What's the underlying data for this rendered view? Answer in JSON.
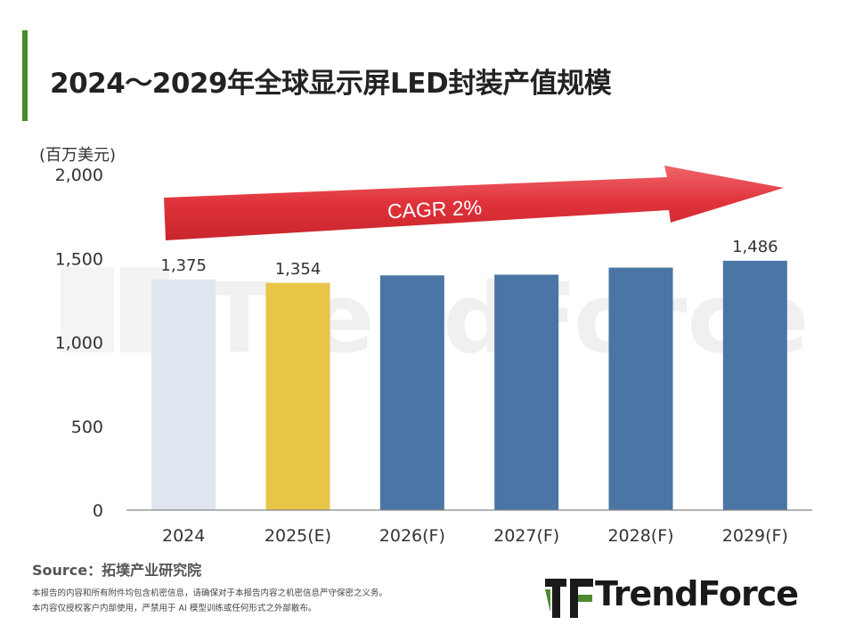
{
  "page": {
    "title": "2024～2029年全球显示屏LED封装产值规模",
    "unit": "(百万美元)",
    "source": "Source：拓墣产业研究院",
    "disclaimer_1": "本报告的内容和所有附件均包含机密信息，请确保对于本报告内容之机密信息严守保密之义务。",
    "disclaimer_2": "本内容仅授权客户内部使用，严禁用于 AI 模型训练或任何形式之外部散布。",
    "logo_text": "TrendForce",
    "watermark": "TrendForce",
    "cagr": "CAGR 2%"
  },
  "chart_data": {
    "type": "bar",
    "categories": [
      "2024",
      "2025(E)",
      "2026(F)",
      "2027(F)",
      "2028(F)",
      "2029(F)"
    ],
    "values": [
      1375,
      1354,
      1399,
      1403,
      1445,
      1486
    ],
    "data_labels": [
      "1,375",
      "1,354",
      "",
      "",
      "",
      "1,486"
    ],
    "bar_colors": [
      "#dfe6ef",
      "#e8c547",
      "#4a75a5",
      "#4a75a5",
      "#4a75a5",
      "#4a75a5"
    ],
    "ylim": [
      0,
      2000
    ],
    "yticks": [
      0,
      500,
      1000,
      1500,
      2000
    ],
    "ytick_labels": [
      "0",
      "500",
      "1,000",
      "1,500",
      "2,000"
    ],
    "ylabel": "(百万美元)",
    "xlabel": "",
    "grid": false,
    "annotation": "CAGR 2%",
    "annotation_color": "#e0323a"
  }
}
